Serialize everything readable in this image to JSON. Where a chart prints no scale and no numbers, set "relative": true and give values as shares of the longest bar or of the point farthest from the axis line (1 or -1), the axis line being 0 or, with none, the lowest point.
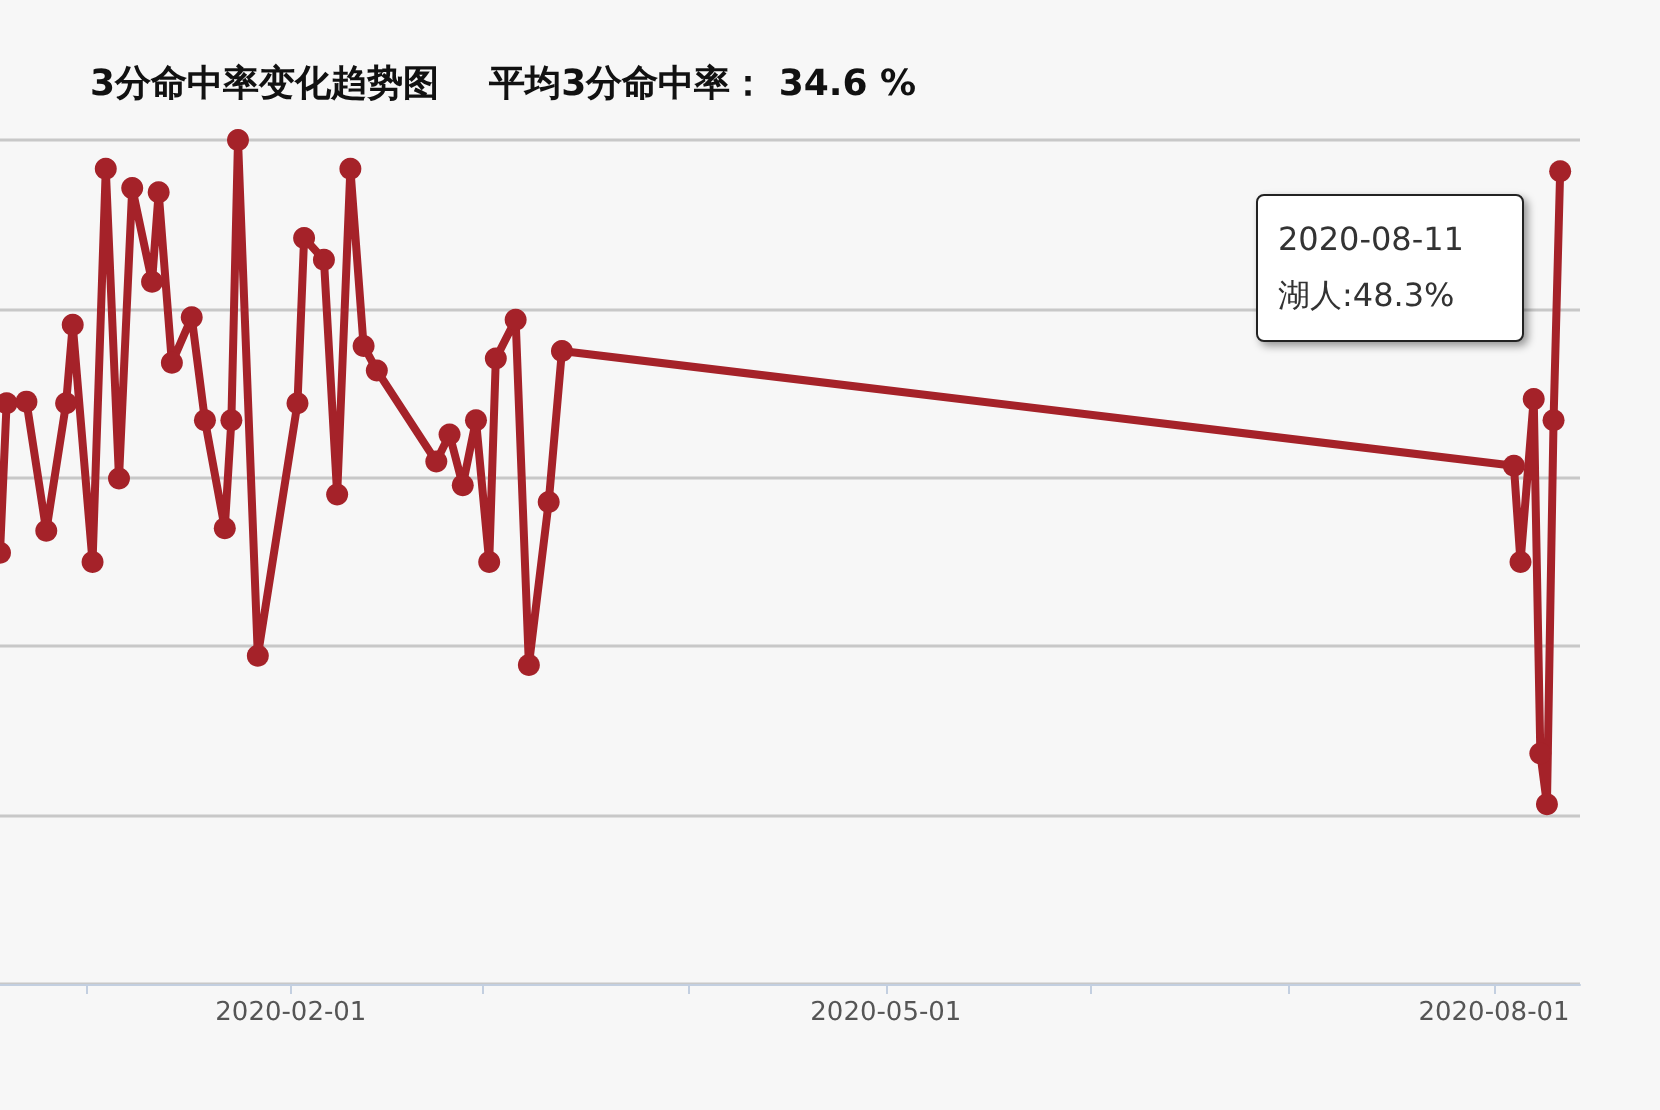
{
  "chart_data": {
    "type": "line",
    "title": "3分命中率变化趋势图    平均3分命中率： 34.6 %",
    "relative": true,
    "grid": "y",
    "marker": "circle",
    "line_style": "solid",
    "tick_labels": "x",
    "x": [
      "2019-12-19",
      "2019-12-20",
      "2019-12-23",
      "2019-12-26",
      "2019-12-29",
      "2019-12-30",
      "2020-01-02",
      "2020-01-04",
      "2020-01-06",
      "2020-01-08",
      "2020-01-11",
      "2020-01-12",
      "2020-01-14",
      "2020-01-17",
      "2020-01-19",
      "2020-01-22",
      "2020-01-23",
      "2020-01-24",
      "2020-01-27",
      "2020-02-02",
      "2020-02-03",
      "2020-02-06",
      "2020-02-08",
      "2020-02-10",
      "2020-02-12",
      "2020-02-14",
      "2020-02-23",
      "2020-02-25",
      "2020-02-27",
      "2020-02-29",
      "2020-03-02",
      "2020-03-03",
      "2020-03-06",
      "2020-03-08",
      "2020-03-11",
      "2020-03-13",
      "2020-08-04",
      "2020-08-05",
      "2020-08-07",
      "2020-08-08",
      "2020-08-09",
      "2020-08-10",
      "2020-08-11"
    ],
    "xlim": [
      "2019-12-19",
      "2020-08-14"
    ],
    "xticks": [
      {
        "value": "2020-01-01",
        "label": null
      },
      {
        "value": "2020-02-01",
        "label": "2020-02-01"
      },
      {
        "value": "2020-03-01",
        "label": null
      },
      {
        "value": "2020-04-01",
        "label": null
      },
      {
        "value": "2020-05-01",
        "label": "2020-05-01"
      },
      {
        "value": "2020-06-01",
        "label": null
      },
      {
        "value": "2020-07-01",
        "label": null
      },
      {
        "value": "2020-08-01",
        "label": "2020-08-01"
      }
    ],
    "series": [
      {
        "color": "#a52229",
        "values": [
          0.511,
          0.688,
          0.69,
          0.537,
          0.688,
          0.781,
          0.5,
          0.966,
          0.599,
          0.943,
          0.832,
          0.938,
          0.736,
          0.79,
          0.668,
          0.54,
          0.668,
          1,
          0.389,
          0.688,
          0.884,
          0.858,
          0.58,
          0.966,
          0.756,
          0.727,
          0.619,
          0.651,
          0.591,
          0.668,
          0.5,
          0.741,
          0.787,
          0.378,
          0.571,
          0.75,
          0.614,
          0.5,
          0.693,
          0.273,
          0.213,
          0.668,
          0.963
        ]
      }
    ],
    "annotations": [
      "2020-08-11\n湖人:48.3%"
    ]
  }
}
